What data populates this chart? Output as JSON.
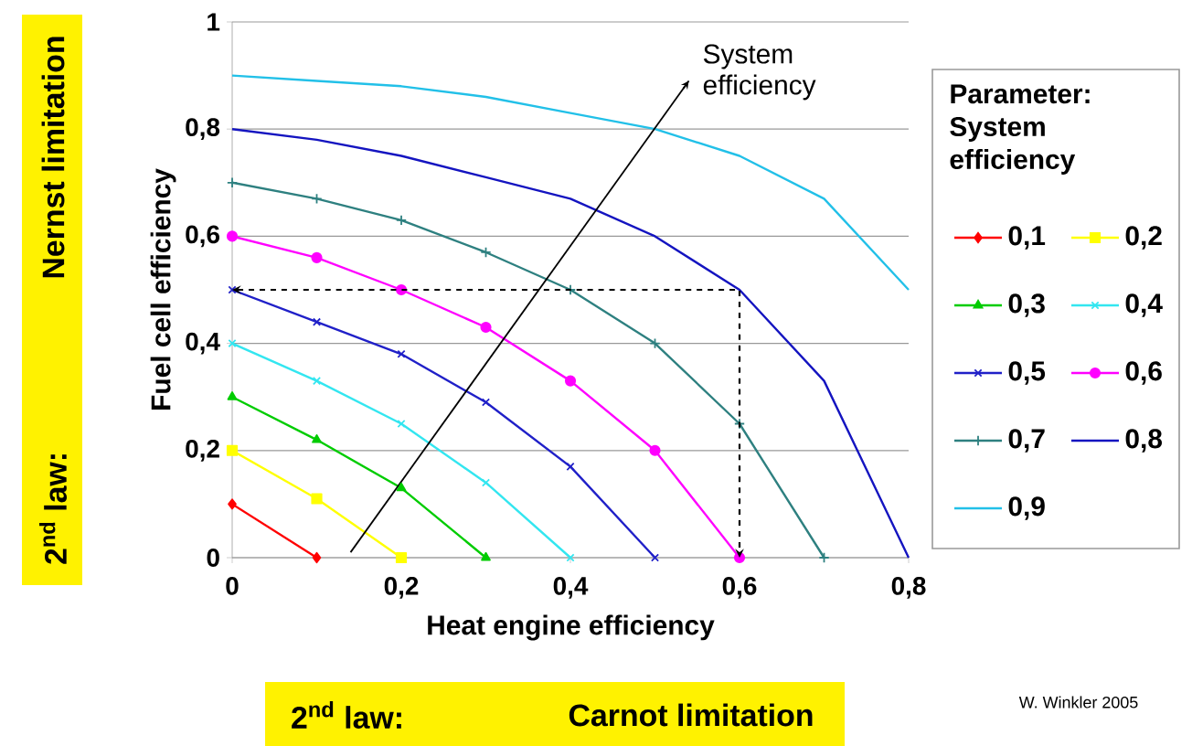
{
  "chart_data": {
    "type": "line",
    "xlabel": "Heat engine efficiency",
    "ylabel": "Fuel cell efficiency",
    "legend_title": "Parameter: System efficiency",
    "xlim": [
      0,
      0.8
    ],
    "ylim": [
      0,
      1
    ],
    "xticks": [
      0,
      {
        "value": 0.2,
        "label": "0,2"
      },
      {
        "value": 0.4,
        "label": "0,4"
      },
      {
        "value": 0.6,
        "label": "0,6"
      },
      {
        "value": 0.8,
        "label": "0,8"
      }
    ],
    "yticks": [
      0,
      {
        "value": 0.2,
        "label": "0,2"
      },
      {
        "value": 0.4,
        "label": "0,4"
      },
      {
        "value": 0.6,
        "label": "0,6"
      },
      {
        "value": 0.8,
        "label": "0,8"
      },
      1
    ],
    "grid": "y",
    "legend": "right",
    "line_style": "solid",
    "series": [
      {
        "name": "0,1",
        "color": "#ff0000",
        "marker": "diamond",
        "x": [
          0,
          0.1
        ],
        "values": [
          0.1,
          0
        ]
      },
      {
        "name": "0,2",
        "color": "#ffff00",
        "marker": "square",
        "x": [
          0,
          0.1,
          0.2
        ],
        "values": [
          0.2,
          0.11,
          0
        ]
      },
      {
        "name": "0,3",
        "color": "#00cc00",
        "marker": "triangle",
        "x": [
          0,
          0.1,
          0.2,
          0.3
        ],
        "values": [
          0.3,
          0.22,
          0.13,
          0
        ]
      },
      {
        "name": "0,4",
        "color": "#33e6f0",
        "marker": "cross",
        "x": [
          0,
          0.1,
          0.2,
          0.3,
          0.4
        ],
        "values": [
          0.4,
          0.33,
          0.25,
          0.14,
          0
        ]
      },
      {
        "name": "0,5",
        "color": "#2020c8",
        "marker": "cross",
        "x": [
          0,
          0.1,
          0.2,
          0.3,
          0.4,
          0.5
        ],
        "values": [
          0.5,
          0.44,
          0.38,
          0.29,
          0.17,
          0
        ]
      },
      {
        "name": "0,6",
        "color": "#ff00ff",
        "marker": "circle",
        "x": [
          0,
          0.1,
          0.2,
          0.3,
          0.4,
          0.5,
          0.6
        ],
        "values": [
          0.6,
          0.56,
          0.5,
          0.43,
          0.33,
          0.2,
          0
        ]
      },
      {
        "name": "0,7",
        "color": "#2e8080",
        "marker": "plus",
        "x": [
          0,
          0.1,
          0.2,
          0.3,
          0.4,
          0.5,
          0.6,
          0.7
        ],
        "values": [
          0.7,
          0.67,
          0.63,
          0.57,
          0.5,
          0.4,
          0.25,
          0
        ]
      },
      {
        "name": "0,8",
        "color": "#1414c0",
        "marker": "none",
        "x": [
          0,
          0.1,
          0.2,
          0.3,
          0.4,
          0.5,
          0.6,
          0.7,
          0.8
        ],
        "values": [
          0.8,
          0.78,
          0.75,
          0.71,
          0.67,
          0.6,
          0.5,
          0.33,
          0
        ]
      },
      {
        "name": "0,9",
        "color": "#22c0e8",
        "marker": "none",
        "x": [
          0,
          0.1,
          0.2,
          0.3,
          0.4,
          0.5,
          0.6,
          0.7,
          0.8
        ],
        "values": [
          0.9,
          0.89,
          0.88,
          0.86,
          0.83,
          0.8,
          0.75,
          0.67,
          0.5
        ]
      },
      {
        "color": "#000000",
        "marker": "none",
        "x": [
          0.14,
          0.54
        ],
        "values": [
          0.01,
          0.89
        ]
      }
    ],
    "annotations": [
      {
        "text": "System efficiency",
        "x": 0.54,
        "y": 0.89
      },
      "2$^{nd}$ law:",
      "Nernst limitation",
      "2$^{nd}$ law:",
      "Carnot limitation",
      "W. Winkler 2005"
    ]
  }
}
